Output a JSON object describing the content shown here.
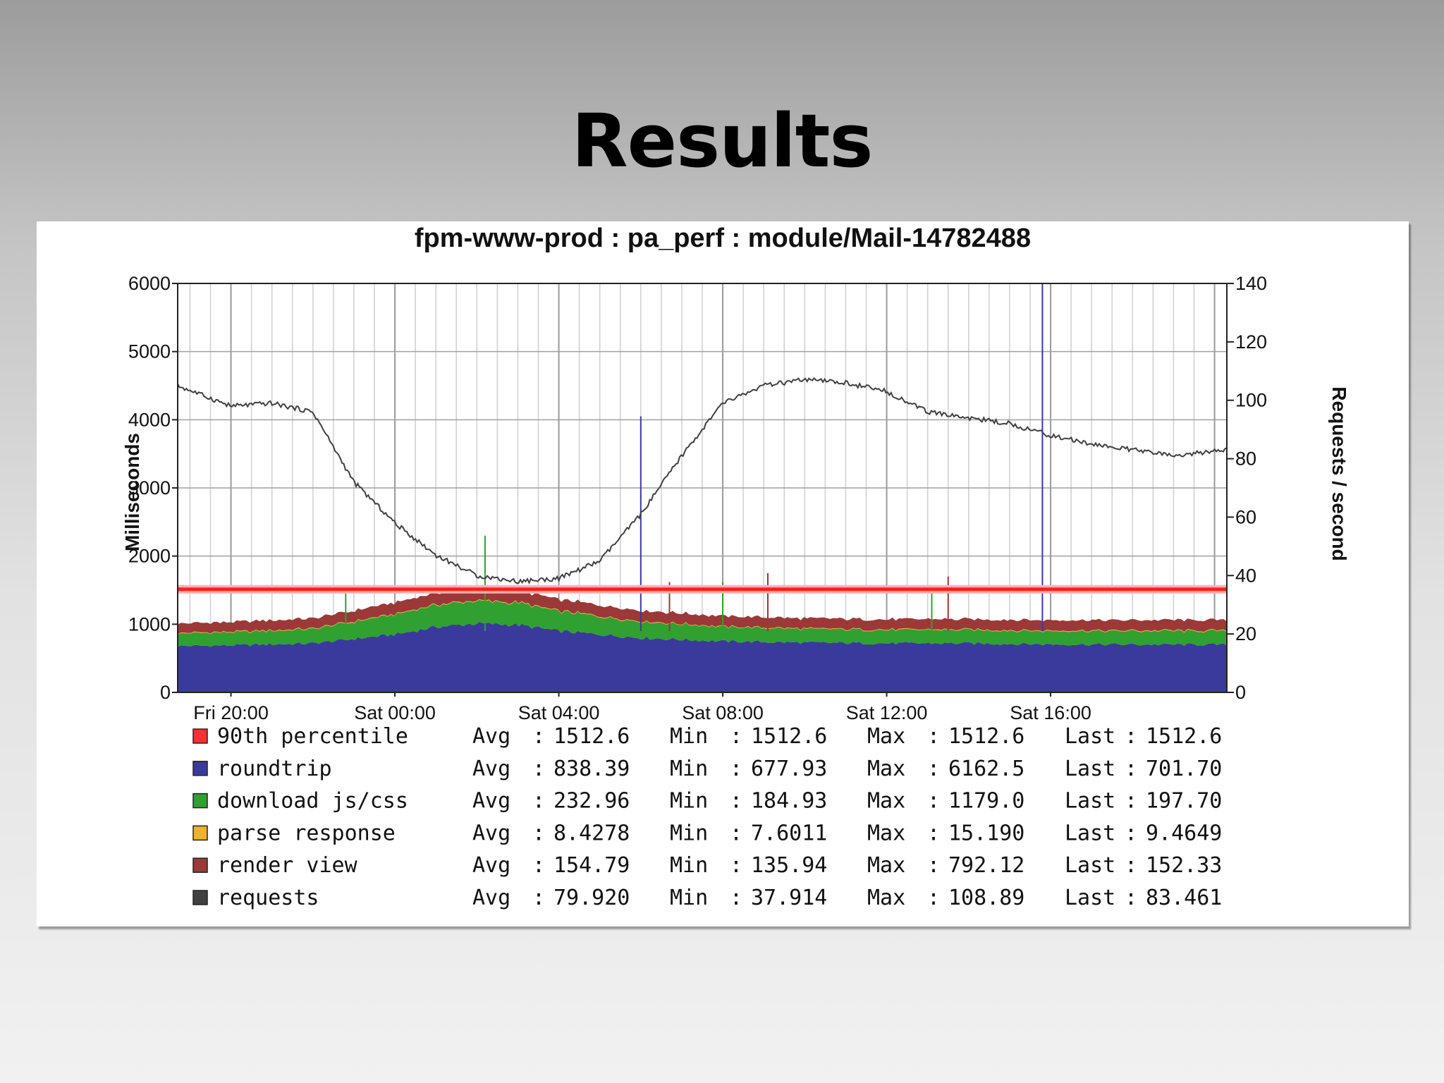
{
  "slide": {
    "title": "Results"
  },
  "chart_data": {
    "type": "area",
    "title": "fpm-www-prod : pa_perf : module/Mail-14782488",
    "ylabel": "Milliseconds",
    "y2label": "Requests / second",
    "ylim": [
      0,
      6000
    ],
    "y2lim": [
      0,
      140
    ],
    "yticks": [
      0,
      1000,
      2000,
      3000,
      4000,
      5000,
      6000
    ],
    "y2ticks": [
      0,
      20,
      40,
      60,
      80,
      100,
      120,
      140
    ],
    "x_range_hours": [
      -5.3,
      20.3
    ],
    "x_ticks": [
      {
        "label": "Fri 20:00",
        "hour": -4
      },
      {
        "label": "Sat 00:00",
        "hour": 0
      },
      {
        "label": "Sat 04:00",
        "hour": 4
      },
      {
        "label": "Sat 08:00",
        "hour": 8
      },
      {
        "label": "Sat 12:00",
        "hour": 12
      },
      {
        "label": "Sat 16:00",
        "hour": 16
      }
    ],
    "grid": true,
    "legend_placement": "bottom",
    "threshold": {
      "series": "90th percentile",
      "value": 1512.6,
      "color": "#ff2020"
    },
    "stack_order": [
      "roundtrip",
      "download js/css",
      "parse response",
      "render view"
    ],
    "stacked_series": [
      {
        "name": "roundtrip",
        "color": "#3a3a9c",
        "x": [
          -5.3,
          -4,
          -2,
          0,
          1,
          2,
          3,
          4,
          6,
          8,
          10,
          12,
          14,
          16,
          20.3
        ],
        "values": [
          680,
          690,
          720,
          850,
          960,
          1010,
          990,
          900,
          800,
          750,
          730,
          720,
          720,
          705,
          700
        ]
      },
      {
        "name": "download js/css",
        "color": "#30a030",
        "x": [
          -5.3,
          -4,
          -2,
          0,
          1,
          2,
          3,
          4,
          6,
          8,
          10,
          12,
          14,
          16,
          20.3
        ],
        "values": [
          185,
          190,
          210,
          290,
          320,
          330,
          320,
          290,
          240,
          210,
          200,
          195,
          195,
          195,
          198
        ]
      },
      {
        "name": "parse response",
        "color": "#f0b030",
        "x": [
          -5.3,
          0,
          4,
          8,
          12,
          16,
          20.3
        ],
        "values": [
          8,
          9,
          9,
          8,
          8,
          9,
          9
        ]
      },
      {
        "name": "render view",
        "color": "#9c3838",
        "x": [
          -5.3,
          -4,
          -2,
          0,
          1,
          2,
          3,
          4,
          6,
          8,
          10,
          12,
          14,
          16,
          20.3
        ],
        "values": [
          140,
          142,
          148,
          165,
          172,
          175,
          172,
          165,
          155,
          150,
          148,
          148,
          150,
          152,
          152
        ]
      }
    ],
    "requests_series": {
      "name": "requests",
      "color": "#404040",
      "axis": "right",
      "x": [
        -5.3,
        -4,
        -3,
        -2,
        -1,
        0,
        1,
        2,
        3,
        4,
        5,
        6,
        7,
        8,
        9,
        10,
        11,
        12,
        13,
        14,
        15,
        16,
        17,
        18,
        19,
        20.3
      ],
      "values": [
        105,
        98,
        99,
        96,
        72,
        58,
        47,
        40,
        38,
        39,
        45,
        61,
        81,
        99,
        105,
        107,
        106,
        103,
        96,
        94,
        92,
        88,
        85,
        83,
        81,
        83
      ]
    },
    "spikes": [
      {
        "hour": -1.2,
        "top": 1450,
        "color": "#30a030"
      },
      {
        "hour": 2.2,
        "top": 2300,
        "color": "#30a030"
      },
      {
        "hour": 6.0,
        "top": 4050,
        "color": "#3a3a9c"
      },
      {
        "hour": 6.7,
        "top": 1620,
        "color": "#9c3838"
      },
      {
        "hour": 8.0,
        "top": 1620,
        "color": "#30a030"
      },
      {
        "hour": 9.1,
        "top": 1750,
        "color": "#9c3838"
      },
      {
        "hour": 13.1,
        "top": 1550,
        "color": "#30a030"
      },
      {
        "hour": 13.5,
        "top": 1700,
        "color": "#9c3838"
      },
      {
        "hour": 15.8,
        "top": 6000,
        "color": "#3a3a9c"
      }
    ],
    "legend": [
      {
        "name": "90th percentile",
        "color": "#ff3030",
        "avg": "1512.6",
        "min": "1512.6",
        "max": "1512.6",
        "last": "1512.6"
      },
      {
        "name": "roundtrip",
        "color": "#3a3a9c",
        "avg": "838.39",
        "min": "677.93",
        "max": "6162.5",
        "last": "701.70"
      },
      {
        "name": "download js/css",
        "color": "#30a030",
        "avg": "232.96",
        "min": "184.93",
        "max": "1179.0",
        "last": "197.70"
      },
      {
        "name": "parse response",
        "color": "#f0b030",
        "avg": "8.4278",
        "min": "7.6011",
        "max": "15.190",
        "last": "9.4649"
      },
      {
        "name": "render view",
        "color": "#9c3838",
        "avg": "154.79",
        "min": "135.94",
        "max": "792.12",
        "last": "152.33"
      },
      {
        "name": "requests",
        "color": "#404040",
        "avg": "79.920",
        "min": "37.914",
        "max": "108.89",
        "last": "83.461"
      }
    ],
    "legend_field_labels": {
      "avg": "Avg",
      "min": "Min",
      "max": "Max",
      "last": "Last"
    },
    "legend_separator": ":"
  }
}
